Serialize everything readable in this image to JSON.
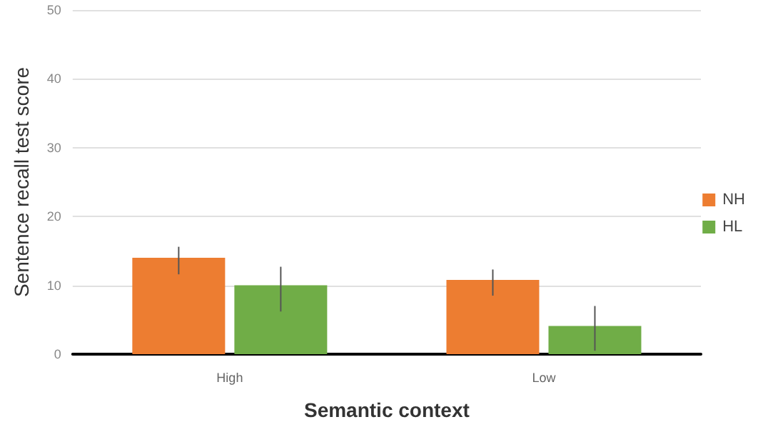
{
  "chart_data": {
    "type": "bar",
    "xlabel": "Semantic context",
    "ylabel": "Sentence recall test score",
    "categories": [
      "High",
      "Low"
    ],
    "series": [
      {
        "name": "NH",
        "color": "#ed7d31",
        "values": [
          14,
          10.8
        ],
        "errors": [
          [
            11.6,
            15.6
          ],
          [
            8.5,
            12.3
          ]
        ]
      },
      {
        "name": "HL",
        "color": "#70ad47",
        "values": [
          10,
          4.1
        ],
        "errors": [
          [
            6.2,
            12.7
          ],
          [
            0.5,
            7.0
          ]
        ]
      }
    ],
    "ylim": [
      0,
      50
    ],
    "yticks": [
      0,
      10,
      20,
      30,
      40,
      50
    ],
    "grid": "y",
    "legend": "right"
  }
}
